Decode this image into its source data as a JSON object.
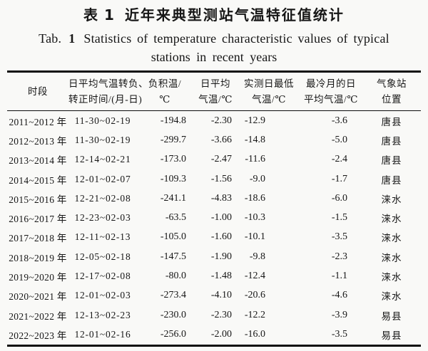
{
  "title": {
    "zh_label": "表 1",
    "zh_text": "近年来典型测站气温特征值统计",
    "en_label": "Tab.",
    "en_number": "1",
    "en_line1": "Statistics of temperature characteristic values of typical",
    "en_line2": "stations in recent years"
  },
  "table": {
    "headers": [
      {
        "line1": "时段",
        "line2": ""
      },
      {
        "line1": "日平均气温转负、",
        "line2": "转正时间/(月-日)"
      },
      {
        "line1": "负积温/",
        "line2": "℃"
      },
      {
        "line1": "日平均",
        "line2": "气温/℃"
      },
      {
        "line1": "实测日最低",
        "line2": "气温/℃"
      },
      {
        "line1": "最冷月的日",
        "line2": "平均气温/℃"
      },
      {
        "line1": "气象站",
        "line2": "位置"
      }
    ],
    "rows": [
      [
        "2011~2012 年",
        "11-30~02-19",
        "-194.8",
        "-2.30",
        "-12.9",
        "-3.6",
        "唐县"
      ],
      [
        "2012~2013 年",
        "11-30~02-19",
        "-299.7",
        "-3.66",
        "-14.8",
        "-5.0",
        "唐县"
      ],
      [
        "2013~2014 年",
        "12-14~02-21",
        "-173.0",
        "-2.47",
        "-11.6",
        "-2.4",
        "唐县"
      ],
      [
        "2014~2015 年",
        "12-01~02-07",
        "-109.3",
        "-1.56",
        "-9.0",
        "-1.7",
        "唐县"
      ],
      [
        "2015~2016 年",
        "12-21~02-08",
        "-241.1",
        "-4.83",
        "-18.6",
        "-6.0",
        "涞水"
      ],
      [
        "2016~2017 年",
        "12-23~02-03",
        "-63.5",
        "-1.00",
        "-10.3",
        "-1.5",
        "涞水"
      ],
      [
        "2017~2018 年",
        "12-11~02-13",
        "-105.0",
        "-1.60",
        "-10.1",
        "-3.5",
        "涞水"
      ],
      [
        "2018~2019 年",
        "12-05~02-18",
        "-147.5",
        "-1.90",
        "-9.8",
        "-2.3",
        "涞水"
      ],
      [
        "2019~2020 年",
        "12-17~02-08",
        "-80.0",
        "-1.48",
        "-12.4",
        "-1.1",
        "涞水"
      ],
      [
        "2020~2021 年",
        "12-01~02-03",
        "-273.4",
        "-4.10",
        "-20.6",
        "-4.6",
        "涞水"
      ],
      [
        "2021~2022 年",
        "12-13~02-23",
        "-230.0",
        "-2.30",
        "-12.2",
        "-3.9",
        "易县"
      ],
      [
        "2022~2023 年",
        "12-01~02-16",
        "-256.0",
        "-2.00",
        "-16.0",
        "-3.5",
        "易县"
      ]
    ]
  },
  "colors": {
    "text": "#161616",
    "background": "#f9f9f7",
    "rule": "#0c0c0c"
  }
}
